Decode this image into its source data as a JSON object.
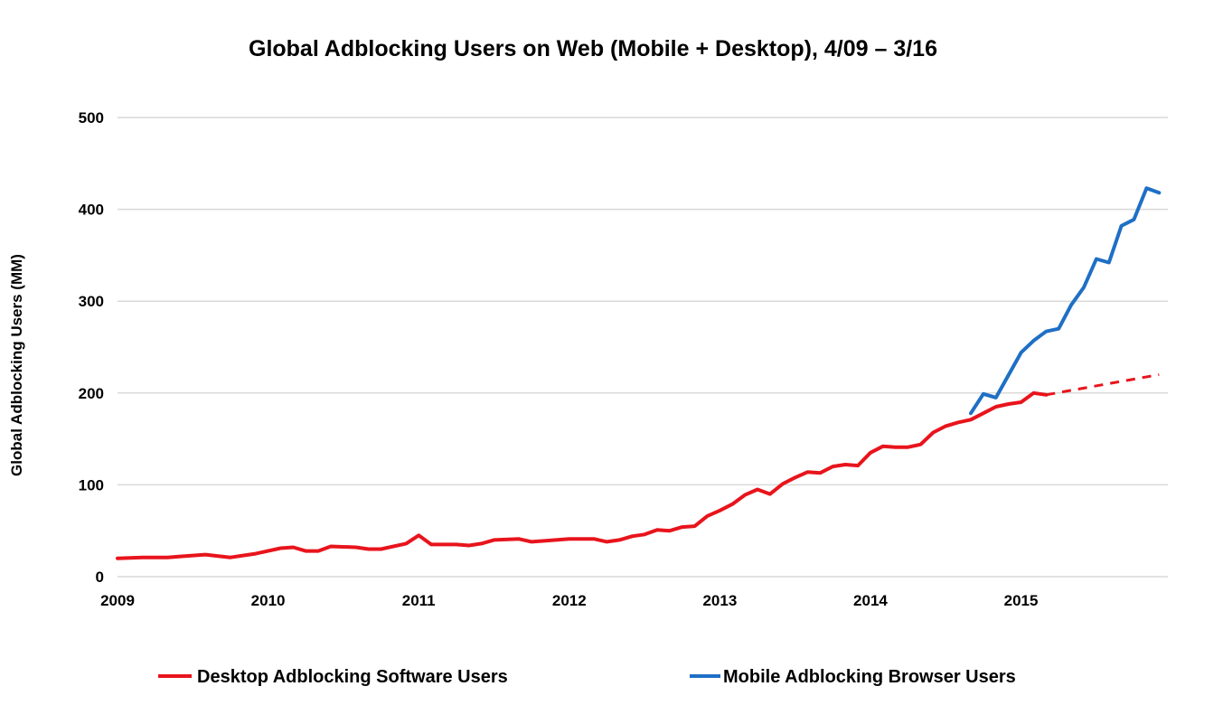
{
  "chart_data": {
    "type": "line",
    "title": "Global Adblocking Users on Web (Mobile + Desktop), 4/09 – 3/16",
    "xlabel": "",
    "ylabel": "Global Adblocking Users (MM)",
    "xlim": [
      "2009-01",
      "2015-12"
    ],
    "ylim": [
      0,
      500
    ],
    "x_ticks": [
      "2009",
      "2010",
      "2011",
      "2012",
      "2013",
      "2014",
      "2015"
    ],
    "y_ticks": [
      0,
      100,
      200,
      300,
      400,
      500
    ],
    "grid": "horizontal",
    "legend_position": "bottom",
    "series": [
      {
        "name": "Desktop Adblocking Software Users",
        "color": "#e8141c",
        "points": [
          [
            "2009-01",
            20
          ],
          [
            "2009-03",
            21
          ],
          [
            "2009-05",
            21
          ],
          [
            "2009-06",
            22
          ],
          [
            "2009-08",
            24
          ],
          [
            "2009-10",
            21
          ],
          [
            "2009-11",
            23
          ],
          [
            "2009-12",
            25
          ],
          [
            "2010-02",
            31
          ],
          [
            "2010-03",
            32
          ],
          [
            "2010-04",
            28
          ],
          [
            "2010-05",
            28
          ],
          [
            "2010-06",
            33
          ],
          [
            "2010-08",
            32
          ],
          [
            "2010-09",
            30
          ],
          [
            "2010-10",
            30
          ],
          [
            "2010-12",
            36
          ],
          [
            "2011-01",
            45
          ],
          [
            "2011-02",
            35
          ],
          [
            "2011-04",
            35
          ],
          [
            "2011-05",
            34
          ],
          [
            "2011-06",
            36
          ],
          [
            "2011-07",
            40
          ],
          [
            "2011-09",
            41
          ],
          [
            "2011-10",
            38
          ],
          [
            "2011-11",
            39
          ],
          [
            "2012-01",
            41
          ],
          [
            "2012-03",
            41
          ],
          [
            "2012-04",
            38
          ],
          [
            "2012-05",
            40
          ],
          [
            "2012-06",
            44
          ],
          [
            "2012-07",
            46
          ],
          [
            "2012-08",
            51
          ],
          [
            "2012-09",
            50
          ],
          [
            "2012-10",
            54
          ],
          [
            "2012-11",
            55
          ],
          [
            "2012-12",
            66
          ],
          [
            "2013-01",
            72
          ],
          [
            "2013-02",
            79
          ],
          [
            "2013-03",
            89
          ],
          [
            "2013-04",
            95
          ],
          [
            "2013-05",
            90
          ],
          [
            "2013-06",
            101
          ],
          [
            "2013-07",
            108
          ],
          [
            "2013-08",
            114
          ],
          [
            "2013-09",
            113
          ],
          [
            "2013-10",
            120
          ],
          [
            "2013-11",
            122
          ],
          [
            "2013-12",
            121
          ],
          [
            "2014-01",
            135
          ],
          [
            "2014-02",
            142
          ],
          [
            "2014-03",
            141
          ],
          [
            "2014-04",
            141
          ],
          [
            "2014-05",
            144
          ],
          [
            "2014-06",
            157
          ],
          [
            "2014-07",
            164
          ],
          [
            "2014-08",
            168
          ],
          [
            "2014-09",
            171
          ],
          [
            "2014-10",
            178
          ],
          [
            "2014-11",
            185
          ],
          [
            "2014-12",
            188
          ],
          [
            "2015-01",
            190
          ],
          [
            "2015-02",
            200
          ],
          [
            "2015-03",
            198
          ]
        ],
        "projection": [
          [
            "2015-03",
            198
          ],
          [
            "2015-12",
            220
          ]
        ]
      },
      {
        "name": "Mobile Adblocking Browser Users",
        "color": "#1f6fc5",
        "points": [
          [
            "2014-09",
            178
          ],
          [
            "2014-10",
            199
          ],
          [
            "2014-11",
            195
          ],
          [
            "2015-01",
            244
          ],
          [
            "2015-02",
            257
          ],
          [
            "2015-03",
            267
          ],
          [
            "2015-04",
            270
          ],
          [
            "2015-05",
            296
          ],
          [
            "2015-06",
            315
          ],
          [
            "2015-07",
            346
          ],
          [
            "2015-08",
            342
          ],
          [
            "2015-09",
            382
          ],
          [
            "2015-10",
            389
          ],
          [
            "2015-11",
            423
          ],
          [
            "2015-12",
            418
          ]
        ]
      }
    ]
  }
}
